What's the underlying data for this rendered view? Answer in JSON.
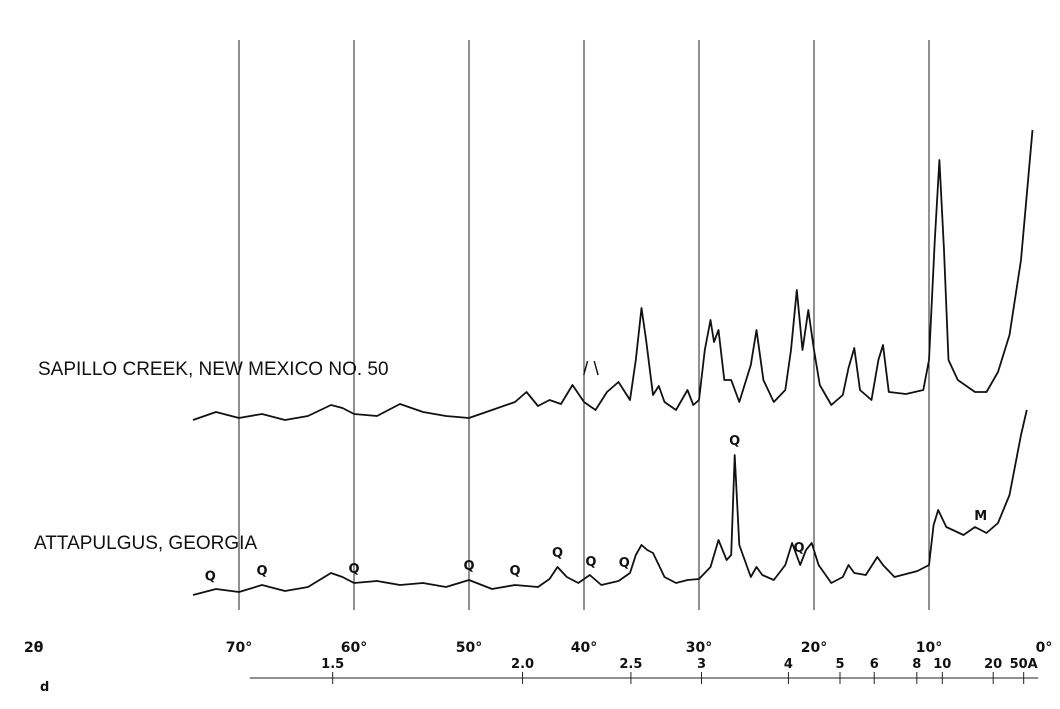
{
  "chart_data": {
    "type": "line",
    "x_axis_name": "2θ",
    "x_ticks": [
      {
        "value": 70,
        "label": "70°"
      },
      {
        "value": 60,
        "label": "60°"
      },
      {
        "value": 50,
        "label": "50°"
      },
      {
        "value": 40,
        "label": "40°"
      },
      {
        "value": 30,
        "label": "30°"
      },
      {
        "value": 20,
        "label": "20°"
      },
      {
        "value": 10,
        "label": "10°"
      },
      {
        "value": 0,
        "label": "0°"
      }
    ],
    "x_reversed": true,
    "x_range": [
      74,
      0
    ],
    "grid_lines_at": [
      70,
      60,
      50,
      40,
      30,
      20,
      10
    ],
    "d_axis_name": "d",
    "d_ticks": [
      {
        "value": 1.5,
        "label": "1.5"
      },
      {
        "value": 2.0,
        "label": "2.0"
      },
      {
        "value": 2.5,
        "label": "2.5"
      },
      {
        "value": 3,
        "label": "3"
      },
      {
        "value": 4,
        "label": "4"
      },
      {
        "value": 5,
        "label": "5"
      },
      {
        "value": 6,
        "label": "6"
      },
      {
        "value": 8,
        "label": "8"
      },
      {
        "value": 10,
        "label": "10"
      },
      {
        "value": 20,
        "label": "20"
      },
      {
        "value": 50,
        "label": "50A"
      }
    ],
    "series": [
      {
        "name": "SAPILLO CREEK, NEW MEXICO NO. 50",
        "annotation": "/ \\",
        "baseline": 420,
        "points": [
          [
            74,
            0
          ],
          [
            72,
            8
          ],
          [
            70,
            2
          ],
          [
            68,
            6
          ],
          [
            66,
            0
          ],
          [
            64,
            4
          ],
          [
            62,
            15
          ],
          [
            61,
            12
          ],
          [
            60,
            6
          ],
          [
            58,
            4
          ],
          [
            56,
            16
          ],
          [
            54,
            8
          ],
          [
            52,
            4
          ],
          [
            50,
            2
          ],
          [
            48,
            10
          ],
          [
            46,
            18
          ],
          [
            45,
            28
          ],
          [
            44,
            14
          ],
          [
            43,
            20
          ],
          [
            42,
            16
          ],
          [
            41,
            35
          ],
          [
            40,
            18
          ],
          [
            39,
            10
          ],
          [
            38,
            28
          ],
          [
            37,
            38
          ],
          [
            36,
            20
          ],
          [
            35.5,
            60
          ],
          [
            35,
            112
          ],
          [
            34.6,
            80
          ],
          [
            34,
            25
          ],
          [
            33.5,
            34
          ],
          [
            33,
            18
          ],
          [
            32,
            10
          ],
          [
            31,
            30
          ],
          [
            30.5,
            15
          ],
          [
            30,
            20
          ],
          [
            29.5,
            70
          ],
          [
            29,
            100
          ],
          [
            28.7,
            78
          ],
          [
            28.3,
            90
          ],
          [
            27.8,
            40
          ],
          [
            27.2,
            40
          ],
          [
            26.5,
            18
          ],
          [
            25.5,
            55
          ],
          [
            25,
            90
          ],
          [
            24.4,
            40
          ],
          [
            23.5,
            18
          ],
          [
            22.5,
            30
          ],
          [
            22,
            70
          ],
          [
            21.5,
            130
          ],
          [
            21,
            70
          ],
          [
            20.5,
            110
          ],
          [
            20,
            70
          ],
          [
            19.5,
            35
          ],
          [
            18.5,
            15
          ],
          [
            17.5,
            25
          ],
          [
            17,
            52
          ],
          [
            16.5,
            72
          ],
          [
            16,
            30
          ],
          [
            15,
            20
          ],
          [
            14.4,
            60
          ],
          [
            14,
            75
          ],
          [
            13.5,
            28
          ],
          [
            12,
            26
          ],
          [
            10.5,
            30
          ],
          [
            10,
            60
          ],
          [
            9.5,
            180
          ],
          [
            9.1,
            260
          ],
          [
            8.7,
            170
          ],
          [
            8.3,
            60
          ],
          [
            7.5,
            40
          ],
          [
            6,
            28
          ],
          [
            5,
            28
          ],
          [
            4,
            48
          ],
          [
            3,
            85
          ],
          [
            2,
            160
          ],
          [
            1,
            290
          ]
        ]
      },
      {
        "name": "ATTAPULGUS, GEORGIA",
        "baseline": 595,
        "points": [
          [
            74,
            0
          ],
          [
            72,
            6
          ],
          [
            70,
            3
          ],
          [
            68,
            10
          ],
          [
            66,
            4
          ],
          [
            64,
            8
          ],
          [
            62,
            22
          ],
          [
            61,
            18
          ],
          [
            60,
            12
          ],
          [
            58,
            14
          ],
          [
            56,
            10
          ],
          [
            54,
            12
          ],
          [
            52,
            8
          ],
          [
            50,
            15
          ],
          [
            48,
            6
          ],
          [
            46,
            10
          ],
          [
            44,
            8
          ],
          [
            43,
            16
          ],
          [
            42.3,
            28
          ],
          [
            41.5,
            18
          ],
          [
            40.5,
            12
          ],
          [
            39.5,
            20
          ],
          [
            38.5,
            10
          ],
          [
            37,
            14
          ],
          [
            36,
            22
          ],
          [
            35.5,
            40
          ],
          [
            35,
            50
          ],
          [
            34.5,
            45
          ],
          [
            34,
            42
          ],
          [
            33.5,
            30
          ],
          [
            33,
            18
          ],
          [
            32,
            12
          ],
          [
            31,
            15
          ],
          [
            30,
            16
          ],
          [
            29,
            28
          ],
          [
            28.3,
            55
          ],
          [
            27.6,
            35
          ],
          [
            27.2,
            40
          ],
          [
            26.9,
            140
          ],
          [
            26.5,
            50
          ],
          [
            25.5,
            18
          ],
          [
            25,
            28
          ],
          [
            24.5,
            20
          ],
          [
            23.5,
            15
          ],
          [
            22.5,
            30
          ],
          [
            21.9,
            52
          ],
          [
            21.2,
            30
          ],
          [
            20.7,
            45
          ],
          [
            20.2,
            52
          ],
          [
            19.6,
            30
          ],
          [
            18.5,
            12
          ],
          [
            17.5,
            18
          ],
          [
            17,
            30
          ],
          [
            16.5,
            22
          ],
          [
            15.5,
            20
          ],
          [
            14.5,
            38
          ],
          [
            14,
            30
          ],
          [
            13,
            18
          ],
          [
            11,
            24
          ],
          [
            10,
            30
          ],
          [
            9.6,
            70
          ],
          [
            9.2,
            85
          ],
          [
            8.5,
            68
          ],
          [
            7,
            60
          ],
          [
            6,
            68
          ],
          [
            5,
            62
          ],
          [
            4,
            72
          ],
          [
            3,
            100
          ],
          [
            2,
            160
          ],
          [
            1.5,
            185
          ]
        ]
      }
    ],
    "peak_marks": [
      {
        "label": "Q",
        "x": 72.5,
        "series": 1
      },
      {
        "label": "Q",
        "x": 68,
        "series": 1
      },
      {
        "label": "Q",
        "x": 60,
        "series": 1
      },
      {
        "label": "Q",
        "x": 50,
        "series": 1
      },
      {
        "label": "Q",
        "x": 46,
        "series": 1
      },
      {
        "label": "Q",
        "x": 42.3,
        "series": 1
      },
      {
        "label": "Q",
        "x": 39.4,
        "series": 1
      },
      {
        "label": "Q",
        "x": 36.5,
        "series": 1
      },
      {
        "label": "Q",
        "x": 26.9,
        "series": 1
      },
      {
        "label": "Q",
        "x": 21.3,
        "series": 1
      },
      {
        "label": "M",
        "x": 5.5,
        "series": 1
      }
    ]
  }
}
